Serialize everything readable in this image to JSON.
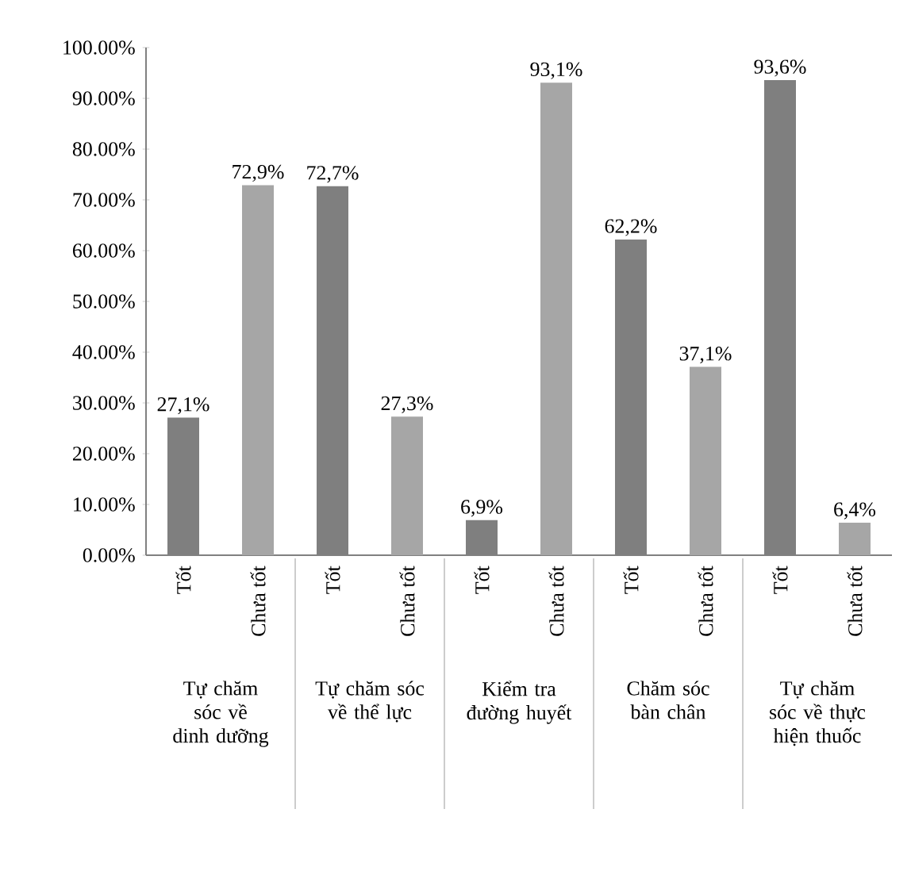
{
  "chart_data": {
    "type": "bar",
    "categories": [
      "Tốt",
      "Chưa tốt",
      "Tốt",
      "Chưa tốt",
      "Tốt",
      "Chưa tốt",
      "Tốt",
      "Chưa tốt",
      "Tốt",
      "Chưa tốt"
    ],
    "values": [
      27.1,
      72.9,
      72.7,
      27.3,
      6.9,
      93.1,
      62.2,
      37.1,
      93.6,
      6.4
    ],
    "value_labels": [
      "27,1%",
      "72,9%",
      "72,7%",
      "27,3%",
      "6,9%",
      "93,1%",
      "62,2%",
      "37,1%",
      "93,6%",
      "6,4%"
    ],
    "colors": [
      "#7f7f7f",
      "#a6a6a6",
      "#7f7f7f",
      "#a6a6a6",
      "#7f7f7f",
      "#a6a6a6",
      "#7f7f7f",
      "#a6a6a6",
      "#7f7f7f",
      "#a6a6a6"
    ],
    "annotations": [
      "Tự chăm sóc về dinh dưỡng",
      "Tự chăm sóc về thể lực",
      "Kiểm tra đường huyết",
      "Chăm sóc bàn chân",
      "Tự chăm sóc về thực hiện thuốc"
    ],
    "ylim": [
      0,
      100
    ],
    "yticks": [
      {
        "value": 0,
        "label": "0.00%"
      },
      {
        "value": 10,
        "label": "10.00%"
      },
      {
        "value": 20,
        "label": "20.00%"
      },
      {
        "value": 30,
        "label": "30.00%"
      },
      {
        "value": 40,
        "label": "40.00%"
      },
      {
        "value": 50,
        "label": "50.00%"
      },
      {
        "value": 60,
        "label": "60.00%"
      },
      {
        "value": 70,
        "label": "70.00%"
      },
      {
        "value": 80,
        "label": "80.00%"
      },
      {
        "value": 90,
        "label": "90.00%"
      },
      {
        "value": 100,
        "label": "100.00%"
      }
    ],
    "grid": false
  }
}
